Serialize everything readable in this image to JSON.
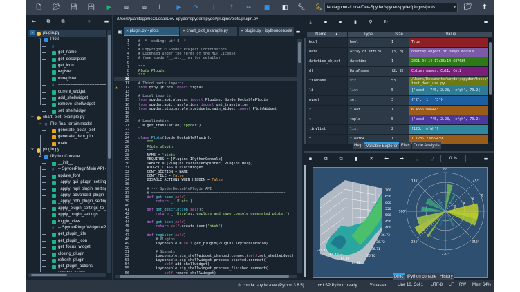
{
  "toolbar": {
    "icons": [
      "new-file-icon",
      "open-file-icon",
      "save-icon",
      "save-all-icon",
      "run-icon",
      "run-cell-icon",
      "run-cell-advance-icon",
      "run-selection-icon",
      "debug-icon",
      "step-over-icon",
      "step-into-icon",
      "step-return-icon",
      "continue-icon",
      "stop-icon",
      "maximize-pane-icon",
      "preferences-icon",
      "python-path-icon"
    ],
    "working_dir": "ianitagomez/Local/Dev-Spyder/spyder/spyder/plugins/plots"
  },
  "outline": {
    "items": [
      {
        "level": 0,
        "icon": "python",
        "label": "plugin.py",
        "expanded": true,
        "selected": true
      },
      {
        "level": 1,
        "icon": "class",
        "label": "Plots",
        "expanded": true
      },
      {
        "level": 2,
        "icon": "cell",
        "label": "------------------------------"
      },
      {
        "level": 2,
        "icon": "method",
        "label": "get_name"
      },
      {
        "level": 2,
        "icon": "method",
        "label": "get_description"
      },
      {
        "level": 2,
        "icon": "method",
        "label": "get_icon"
      },
      {
        "level": 2,
        "icon": "method",
        "label": "register"
      },
      {
        "level": 2,
        "icon": "method",
        "label": "unregister"
      },
      {
        "level": 2,
        "icon": "cell",
        "label": "=============================="
      },
      {
        "level": 2,
        "icon": "method",
        "label": "current_widget"
      },
      {
        "level": 2,
        "icon": "method",
        "label": "add_shellwidget"
      },
      {
        "level": 2,
        "icon": "method",
        "label": "remove_shellwidget"
      },
      {
        "level": 2,
        "icon": "method",
        "label": "set_shellwidget"
      },
      {
        "level": 0,
        "icon": "python",
        "label": "chart_plot_example.py",
        "expanded": true
      },
      {
        "level": 1,
        "icon": "cellx",
        "label": "Plot final terrain model",
        "expanded": true
      },
      {
        "level": 2,
        "icon": "function",
        "label": "generate_polar_plot"
      },
      {
        "level": 2,
        "icon": "function",
        "label": "generate_dem_plot"
      },
      {
        "level": 2,
        "icon": "function",
        "label": "main"
      },
      {
        "level": 0,
        "icon": "python",
        "label": "plugin.py",
        "expanded": true
      },
      {
        "level": 1,
        "icon": "class",
        "label": "IPythonConsole",
        "expanded": true
      },
      {
        "level": 2,
        "icon": "method",
        "label": "__init__"
      },
      {
        "level": 2,
        "icon": "cell",
        "label": "-- SpyderPluginMixin API -"
      },
      {
        "level": 2,
        "icon": "method",
        "label": "update_font"
      },
      {
        "level": 2,
        "icon": "method",
        "label": "_apply_gui_plugin_settings"
      },
      {
        "level": 2,
        "icon": "method",
        "label": "_apply_mpl_plugin_setting"
      },
      {
        "level": 2,
        "icon": "method",
        "label": "_apply_advanced_plugin_s"
      },
      {
        "level": 2,
        "icon": "method",
        "label": "_apply_pdb_plugin_setting"
      },
      {
        "level": 2,
        "icon": "method",
        "label": "apply_plugin_settings_to_c"
      },
      {
        "level": 2,
        "icon": "method",
        "label": "apply_plugin_settings"
      },
      {
        "level": 2,
        "icon": "method",
        "label": "toggle_view"
      },
      {
        "level": 2,
        "icon": "cell",
        "label": "-- SpyderPluginWidget AP"
      },
      {
        "level": 2,
        "icon": "method",
        "label": "get_plugin_title"
      },
      {
        "level": 2,
        "icon": "method",
        "label": "get_plugin_icon"
      },
      {
        "level": 2,
        "icon": "method",
        "label": "get_focus_widget"
      },
      {
        "level": 2,
        "icon": "method",
        "label": "closing_plugin"
      },
      {
        "level": 2,
        "icon": "method",
        "label": "refresh_plugin"
      },
      {
        "level": 2,
        "icon": "method",
        "label": "get_plugin_actions"
      },
      {
        "level": 2,
        "icon": "method",
        "label": "register_plugin"
      }
    ]
  },
  "editor": {
    "path": "/Users/juanitagomez/Local/Dev-Spyder/spyder/spyder/plugins/plots/plugin.py",
    "tabs": [
      {
        "label": "plugin.py - plots",
        "active": true
      },
      {
        "label": "chart_plot_example.py"
      },
      {
        "label": "plugin.py - ipythonconsole"
      }
    ],
    "current_line": 10,
    "warning_line": 12,
    "lines": [
      "# -*- coding: utf-8 -*-",
      "#",
      "# Copyright © Spyder Project Contributors",
      "# Licensed under the terms of the MIT License",
      "# (see spyder/__init__.py for details)",
      "",
      "\"\"\"",
      "Plots Plugin.",
      "\"\"\"",
      "",
      "# Third party imports",
      "from qtpy.QtCore import Signal",
      "",
      "# Local imports",
      "from spyder.api.plugins import Plugins, SpyderDockablePlugin",
      "from spyder.api.translations import get_translation",
      "from spyder.plugins.plots.widgets.main_widget import PlotsWidget",
      "",
      "",
      "# Localization",
      "_ = get_translation('spyder')",
      "",
      "",
      "class Plots(SpyderDockablePlugin):",
      "    \"\"\"",
      "    Plots plugin.",
      "    \"\"\"",
      "    NAME = 'plots'",
      "    REQUIRES = [Plugins.IPythonConsole]",
      "    TABIFY = [Plugins.VariableExplorer, Plugins.Help]",
      "    WIDGET_CLASS = PlotsWidget",
      "    CONF_SECTION = NAME",
      "    CONF_FILE = False",
      "    DISABLE_ACTIONS_WHEN_HIDDEN = False",
      "",
      "    # --- SpyderDockablePlugin API",
      "    # ==============================================================",
      "    def get_name(self):",
      "        return _('Plots')",
      "",
      "    def get_description(self):",
      "        return _('Display, explore and save console generated plots.')",
      "",
      "    def get_icon(self):",
      "        return self.create_icon('hist')",
      "",
      "    def register(self):",
      "        # Plugins",
      "        ipyconsole = self.get_plugin(Plugins.IPythonConsole)",
      "",
      "        # Signals",
      "        ipyconsole.sig_shellwidget_changed.connect(self.set_shellwidget)",
      "        ipyconsole.sig_shellwidget_process_started.connect(",
      "            self.add_shellwidget)",
      "        ipyconsole.sig_shellwidget_process_finished.connect(",
      "            self.remove_shellwidget)"
    ]
  },
  "variable_explorer": {
    "columns": [
      "Name",
      "Type",
      "Size",
      "Value"
    ],
    "rows": [
      {
        "name": "bool",
        "type": "bool",
        "size": "1",
        "value": "True",
        "color": "#8e2025"
      },
      {
        "name": "data",
        "type": "Array of str128",
        "size": "(3, 3)",
        "value": "ndarray object of numpy module",
        "color": "#7b5ba8"
      },
      {
        "name": "datetime_object",
        "type": "datetime",
        "size": "1",
        "value": "2021-04-14 17:35:14.687085",
        "color": "#2d7a14"
      },
      {
        "name": "df",
        "type": "DataFrame",
        "size": "(2, 2)",
        "value": "Column names: Col1, Col2",
        "color": "#7a1f78"
      },
      {
        "name": "filename",
        "type": "str",
        "size": "53",
        "value": "/Users/Documents/spyder/spyder/tests/\ntest_dont_use.py",
        "color": "#6d7a12"
      },
      {
        "name": "li",
        "type": "list",
        "size": "5",
        "value": "['abcd', 745, 2.23, 'efgh', 70.2]",
        "color": "#2e7b95"
      },
      {
        "name": "myset",
        "type": "set",
        "size": "3",
        "value": "{'2', '1', '3'}",
        "color": "#1c5e9f"
      },
      {
        "name": "r",
        "type": "float",
        "size": "1",
        "value": "6.46567886443",
        "color": "#9a5c19"
      },
      {
        "name": "t",
        "type": "tuple",
        "size": "5",
        "value": "('abcd', 745, 2.23, 'efgh', 70.2)",
        "color": "#4a38a0"
      },
      {
        "name": "tinylist",
        "type": "list",
        "size": "2",
        "value": "[123, 'efgh']",
        "color": "#2e869f"
      },
      {
        "name": "x",
        "type": "float64",
        "size": "1",
        "value": "1.1235123899439",
        "color": "#9a5c19"
      }
    ],
    "tabs": [
      {
        "label": "Help"
      },
      {
        "label": "Variable Explorer",
        "active": true
      },
      {
        "label": "Files"
      },
      {
        "label": "Code Analysis"
      }
    ]
  },
  "plots": {
    "zoom": "0 %",
    "z_ticks": [
      "700",
      "650",
      "600",
      "550",
      "500",
      "450",
      "400"
    ],
    "y_ticks": [
      "36.73",
      "36.72",
      "36.71",
      "36.70"
    ],
    "x_ticks": [
      "-84.41",
      "-84.40",
      "-84.39",
      "-84.38"
    ],
    "angle_labels": [
      "90°",
      "45°",
      "0°",
      "315°",
      "270°",
      "225°",
      "180°",
      "135°"
    ],
    "radial_labels": [
      "2",
      "4",
      "6",
      "8"
    ],
    "tabs": [
      {
        "label": "Plots",
        "active": true
      },
      {
        "label": "IPython console"
      },
      {
        "label": "History"
      }
    ]
  },
  "status": {
    "conda": "conda: spyder-dev (Python 3.8.5)",
    "lsp": "LSP Python: ready",
    "branch": "master",
    "position": "Line 10, Col 1",
    "encoding": "UTF-8",
    "eol": "LF",
    "mode": "RW",
    "memory": "Mem 64%"
  }
}
